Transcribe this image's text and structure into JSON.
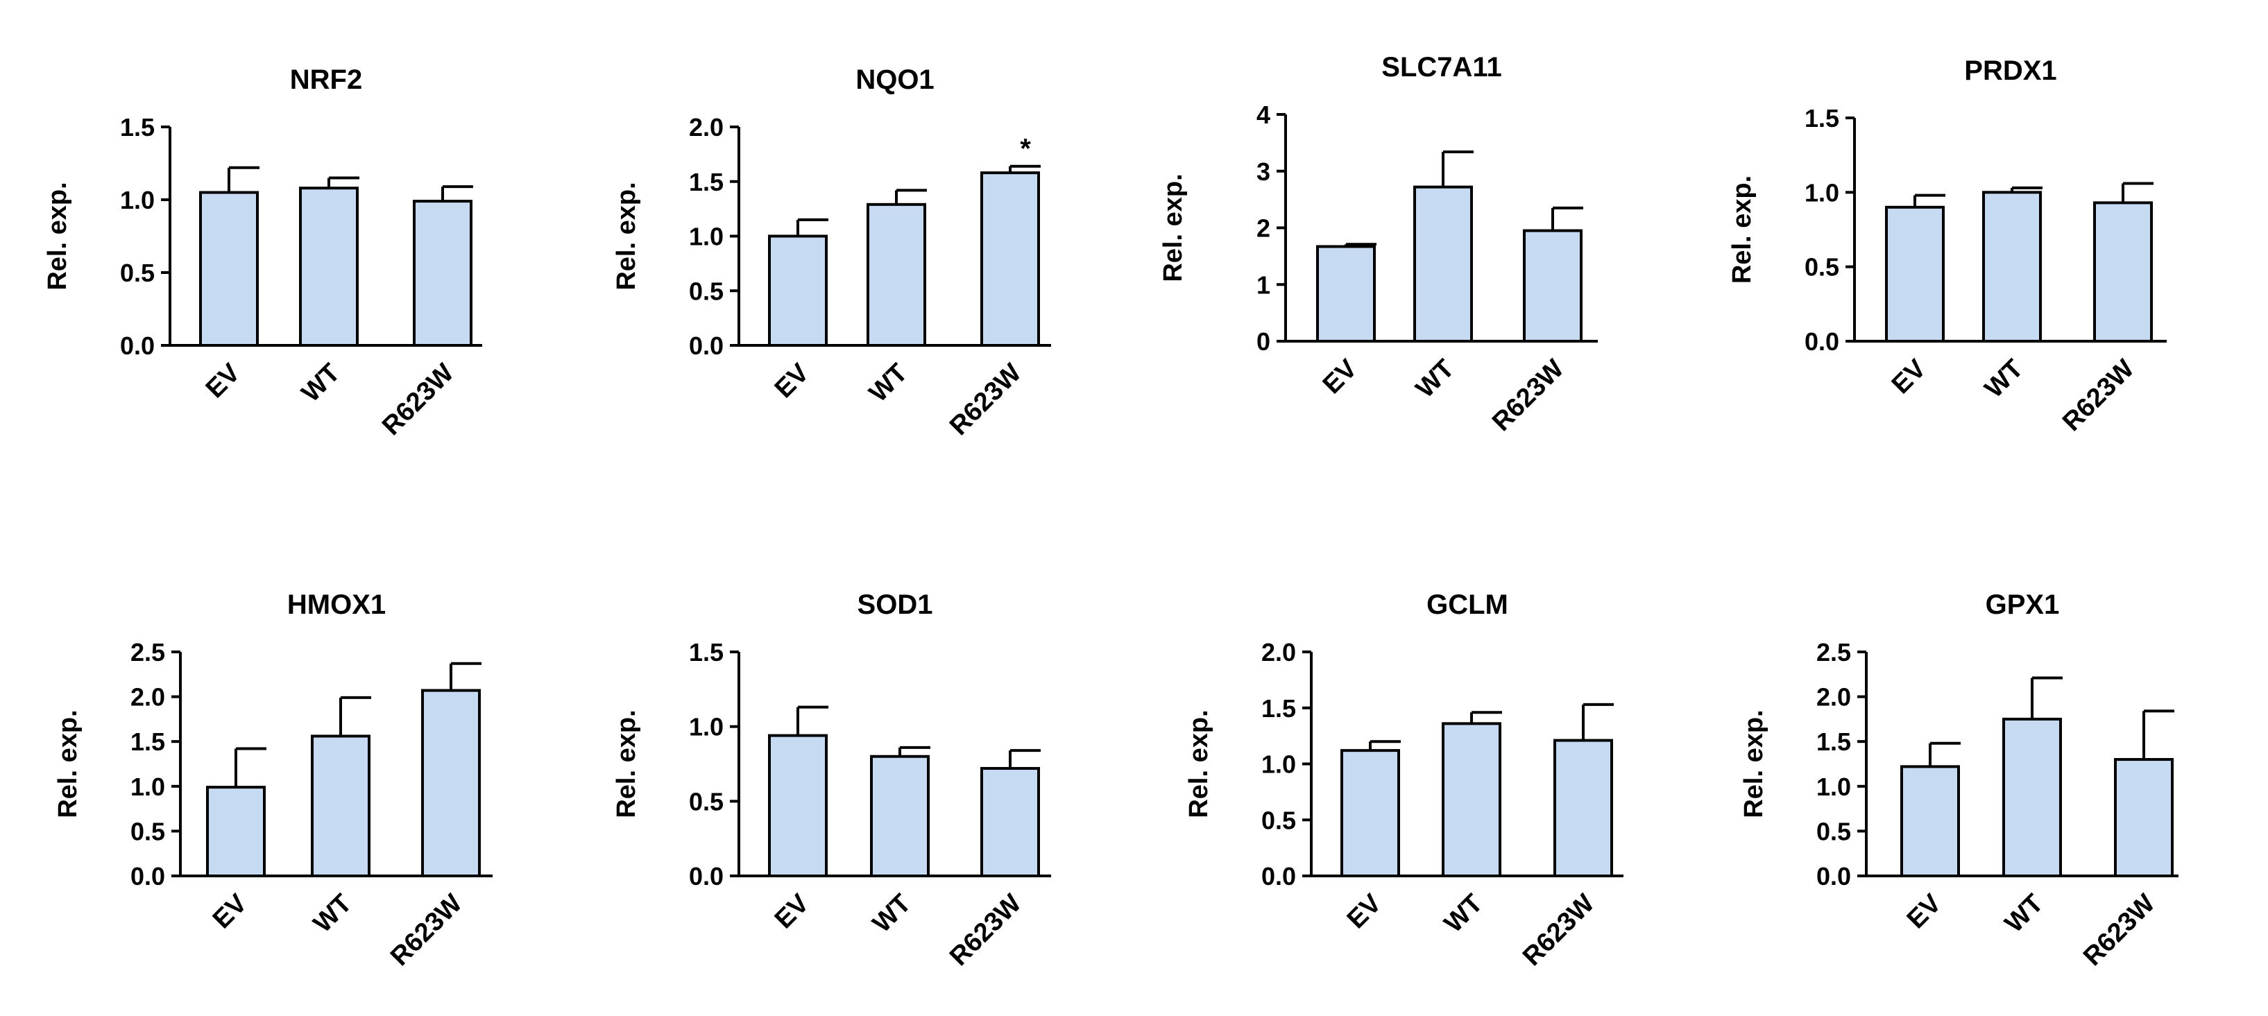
{
  "figure_colors": {
    "bar_fill": "#c6daf2",
    "bar_stroke": "#000000",
    "axis": "#000000"
  },
  "chart_data": [
    {
      "type": "bar",
      "title": "NRF2",
      "ylabel": "Rel. exp.",
      "categories": [
        "EV",
        "WT",
        "R623W"
      ],
      "values": [
        1.05,
        1.08,
        0.99
      ],
      "errors": [
        0.17,
        0.07,
        0.1
      ],
      "ylim": [
        0,
        1.5
      ],
      "yticks": [
        "0.0",
        "0.5",
        "1.0",
        "1.5"
      ],
      "annotations": [
        "",
        "",
        ""
      ]
    },
    {
      "type": "bar",
      "title": "NQO1",
      "ylabel": "Rel. exp.",
      "categories": [
        "EV",
        "WT",
        "R623W"
      ],
      "values": [
        1.0,
        1.29,
        1.58
      ],
      "errors": [
        0.15,
        0.13,
        0.06
      ],
      "ylim": [
        0,
        2.0
      ],
      "yticks": [
        "0.0",
        "0.5",
        "1.0",
        "1.5",
        "2.0"
      ],
      "annotations": [
        "",
        "",
        "*"
      ]
    },
    {
      "type": "bar",
      "title": "SLC7A11",
      "ylabel": "Rel. exp.",
      "categories": [
        "EV",
        "WT",
        "R623W"
      ],
      "values": [
        1.67,
        2.72,
        1.95
      ],
      "errors": [
        0.04,
        0.62,
        0.4
      ],
      "ylim": [
        0,
        4
      ],
      "yticks": [
        "0",
        "1",
        "2",
        "3",
        "4"
      ],
      "annotations": [
        "",
        "",
        ""
      ]
    },
    {
      "type": "bar",
      "title": "PRDX1",
      "ylabel": "Rel. exp.",
      "categories": [
        "EV",
        "WT",
        "R623W"
      ],
      "values": [
        0.9,
        1.0,
        0.93
      ],
      "errors": [
        0.08,
        0.03,
        0.13
      ],
      "ylim": [
        0,
        1.5
      ],
      "yticks": [
        "0.0",
        "0.5",
        "1.0",
        "1.5"
      ],
      "annotations": [
        "",
        "",
        ""
      ]
    },
    {
      "type": "bar",
      "title": "HMOX1",
      "ylabel": "Rel. exp.",
      "categories": [
        "EV",
        "WT",
        "R623W"
      ],
      "values": [
        0.99,
        1.56,
        2.07
      ],
      "errors": [
        0.43,
        0.43,
        0.3
      ],
      "ylim": [
        0,
        2.5
      ],
      "yticks": [
        "0.0",
        "0.5",
        "1.0",
        "1.5",
        "2.0",
        "2.5"
      ],
      "annotations": [
        "",
        "",
        ""
      ]
    },
    {
      "type": "bar",
      "title": "SOD1",
      "ylabel": "Rel. exp.",
      "categories": [
        "EV",
        "WT",
        "R623W"
      ],
      "values": [
        0.94,
        0.8,
        0.72
      ],
      "errors": [
        0.19,
        0.06,
        0.12
      ],
      "ylim": [
        0,
        1.5
      ],
      "yticks": [
        "0.0",
        "0.5",
        "1.0",
        "1.5"
      ],
      "annotations": [
        "",
        "",
        ""
      ]
    },
    {
      "type": "bar",
      "title": "GCLM",
      "ylabel": "Rel. exp.",
      "categories": [
        "EV",
        "WT",
        "R623W"
      ],
      "values": [
        1.12,
        1.36,
        1.21
      ],
      "errors": [
        0.08,
        0.1,
        0.32
      ],
      "ylim": [
        0,
        2.0
      ],
      "yticks": [
        "0.0",
        "0.5",
        "1.0",
        "1.5",
        "2.0"
      ],
      "annotations": [
        "",
        "",
        ""
      ]
    },
    {
      "type": "bar",
      "title": "GPX1",
      "ylabel": "Rel. exp.",
      "categories": [
        "EV",
        "WT",
        "R623W"
      ],
      "values": [
        1.22,
        1.75,
        1.3
      ],
      "errors": [
        0.26,
        0.46,
        0.54
      ],
      "ylim": [
        0,
        2.5
      ],
      "yticks": [
        "0.0",
        "0.5",
        "1.0",
        "1.5",
        "2.0",
        "2.5"
      ],
      "annotations": [
        "",
        "",
        ""
      ]
    }
  ]
}
